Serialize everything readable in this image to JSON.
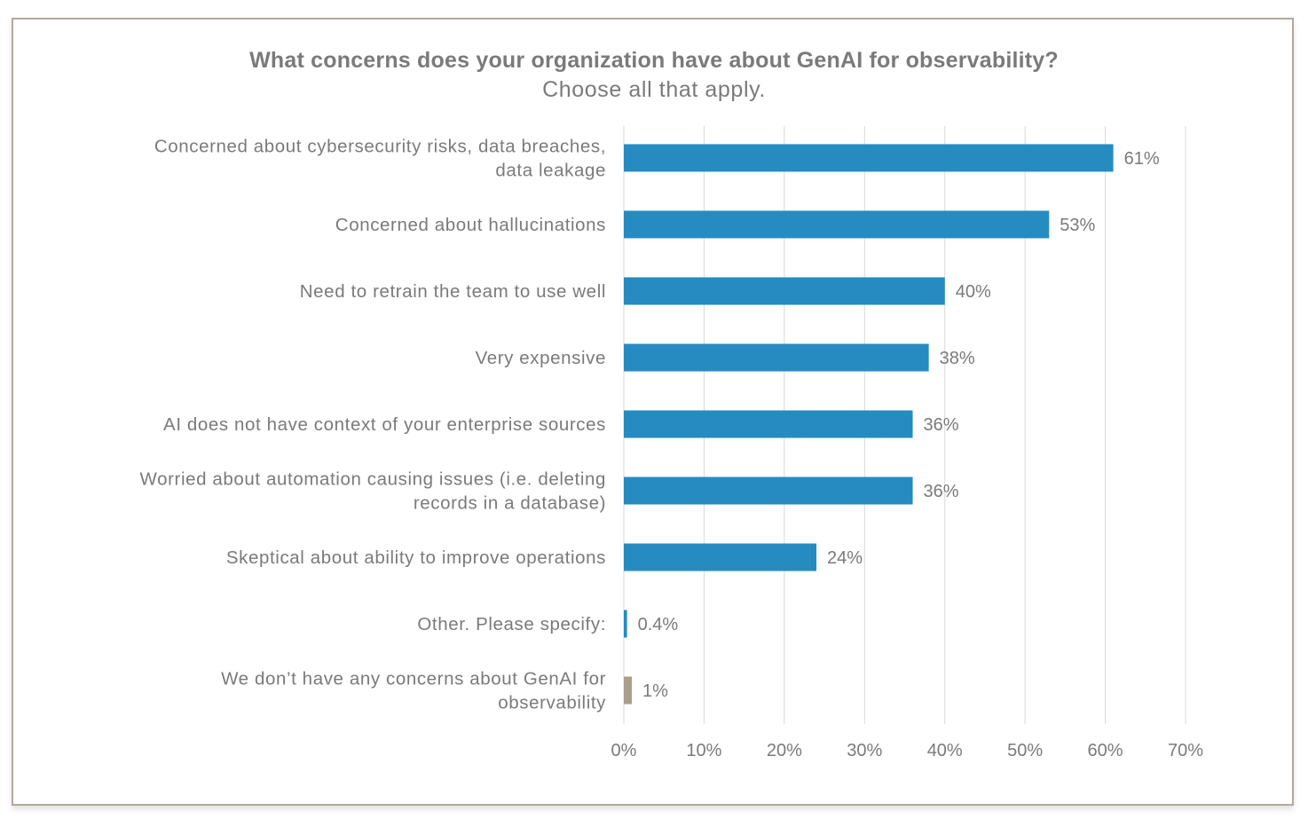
{
  "chart_data": {
    "type": "bar",
    "orientation": "horizontal",
    "title": "What concerns does your organization have about GenAI for observability?",
    "subtitle": "Choose all that apply.",
    "categories": [
      [
        "Concerned about cybersecurity risks, data breaches,",
        "data leakage"
      ],
      [
        "Concerned about hallucinations"
      ],
      [
        "Need to retrain the team to use well"
      ],
      [
        "Very expensive"
      ],
      [
        "AI does not have context of your enterprise sources"
      ],
      [
        "Worried about automation causing issues (i.e. deleting",
        "records in a database)"
      ],
      [
        "Skeptical about ability to improve operations"
      ],
      [
        "Other. Please specify:"
      ],
      [
        "We don’t have any concerns about GenAI for",
        "observability"
      ]
    ],
    "values": [
      61,
      53,
      40,
      38,
      36,
      36,
      24,
      0.4,
      1
    ],
    "data_labels": [
      "61%",
      "53%",
      "40%",
      "38%",
      "36%",
      "36%",
      "24%",
      "0.4%",
      "1%"
    ],
    "bar_colors": [
      "#268bc0",
      "#268bc0",
      "#268bc0",
      "#268bc0",
      "#268bc0",
      "#268bc0",
      "#268bc0",
      "#268bc0",
      "#ab9f8c"
    ],
    "xlim": [
      0,
      70
    ],
    "xticks": [
      0,
      10,
      20,
      30,
      40,
      50,
      60,
      70
    ],
    "xtick_labels": [
      "0%",
      "10%",
      "20%",
      "30%",
      "40%",
      "50%",
      "60%",
      "70%"
    ],
    "grid": "vertical",
    "legend": "none",
    "xlabel": "",
    "ylabel": ""
  }
}
